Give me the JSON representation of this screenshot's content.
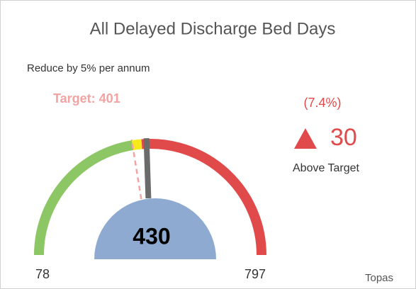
{
  "chart_data": {
    "type": "gauge",
    "title": "All Delayed Discharge Bed Days",
    "subtitle": "Reduce by 5% per annum",
    "min": 78,
    "max": 797,
    "min_label": "78",
    "max_label": "797",
    "value": 430,
    "value_color": "#8eaad0",
    "needle_color": "#6b6b6b",
    "target": 401,
    "target_label": "Target: 401",
    "target_color": "#f4a3a3",
    "bands": [
      {
        "color": "#8cc665",
        "from": 78,
        "to": 401
      },
      {
        "color": "#f7ea1a",
        "from": 401,
        "to": 420
      },
      {
        "color": "#e04a4a",
        "from": 420,
        "to": 797
      }
    ],
    "variance_percent": 7.4,
    "variance_percent_label": "(7.4%)",
    "variance": 30,
    "variance_text": "Above Target",
    "variance_color": "#e04a4a",
    "footer": "Topas"
  }
}
